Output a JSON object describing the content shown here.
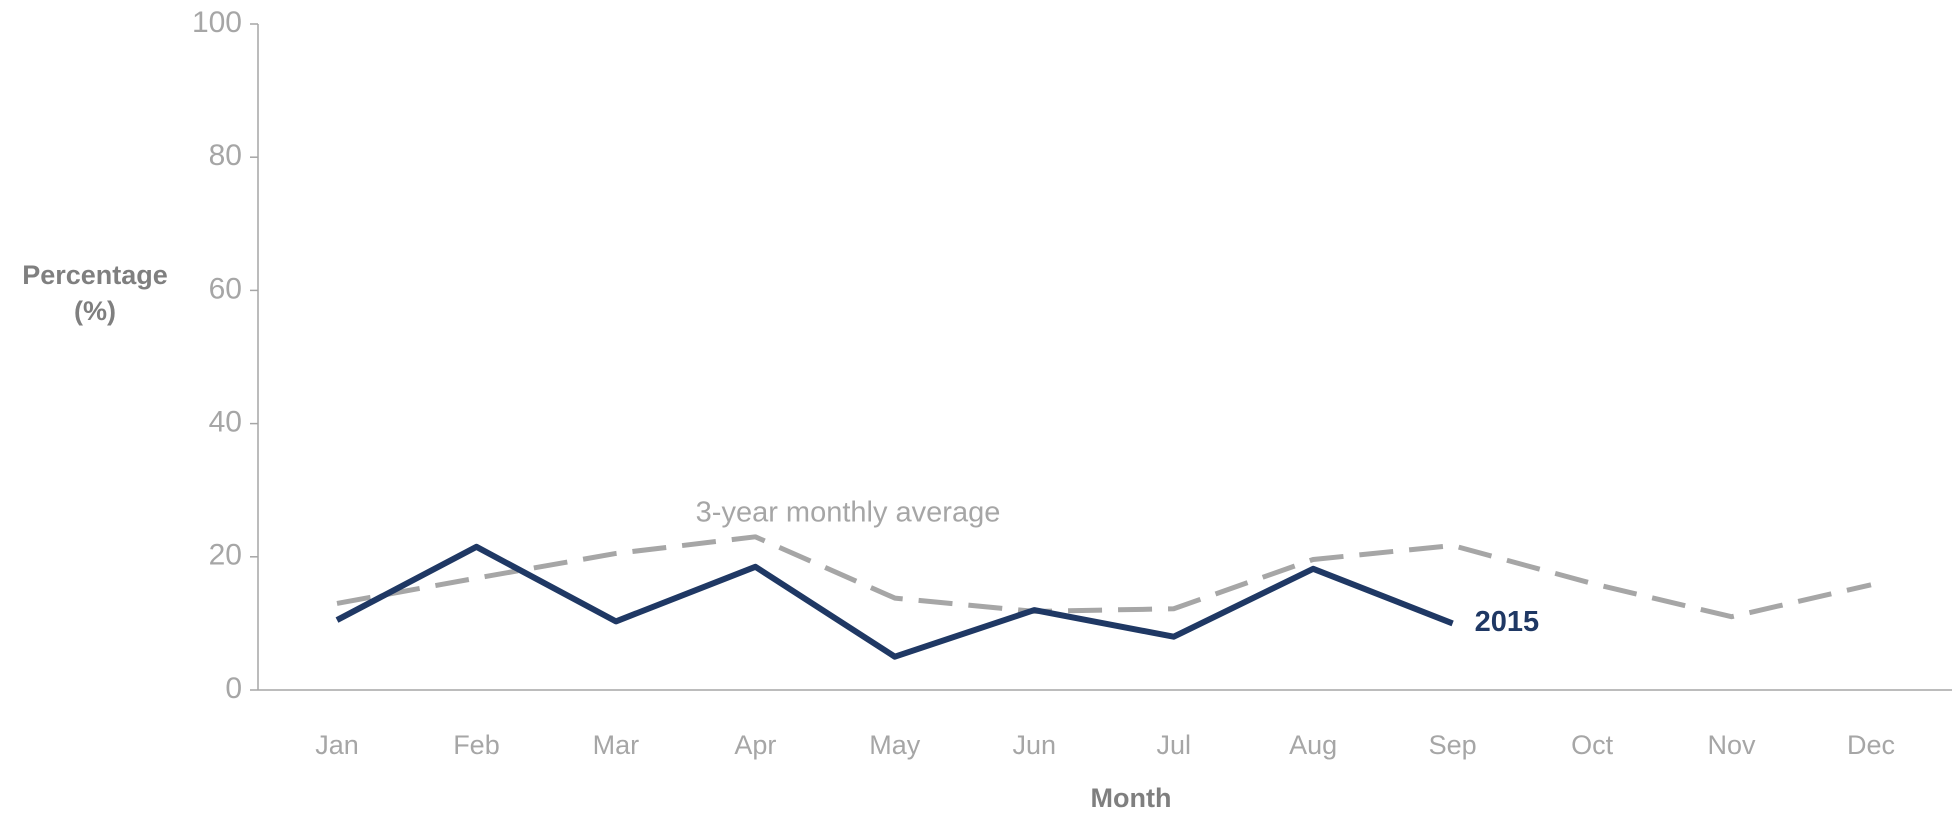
{
  "chart_data": {
    "type": "line",
    "y_label": [
      "Percentage",
      "(%)"
    ],
    "x_label": "Month",
    "categories": [
      "Jan",
      "Feb",
      "Mar",
      "Apr",
      "May",
      "Jun",
      "Jul",
      "Aug",
      "Sep",
      "Oct",
      "Nov",
      "Dec"
    ],
    "series": [
      {
        "name": "3-year monthly average",
        "color": "#a6a6a6",
        "dashed": true,
        "values": [
          13,
          16.8,
          20.5,
          23,
          13.8,
          11.8,
          12.2,
          19.6,
          21.7,
          16,
          11,
          15.8
        ]
      },
      {
        "name": "2015",
        "color": "#1f3864",
        "dashed": false,
        "values": [
          10.5,
          21.5,
          10.3,
          18.5,
          5,
          12,
          8,
          18.2,
          10,
          null,
          null,
          null
        ]
      }
    ],
    "ylim": [
      0,
      100
    ],
    "yticks": [
      0,
      20,
      40,
      60,
      80,
      100
    ],
    "grid": false
  }
}
